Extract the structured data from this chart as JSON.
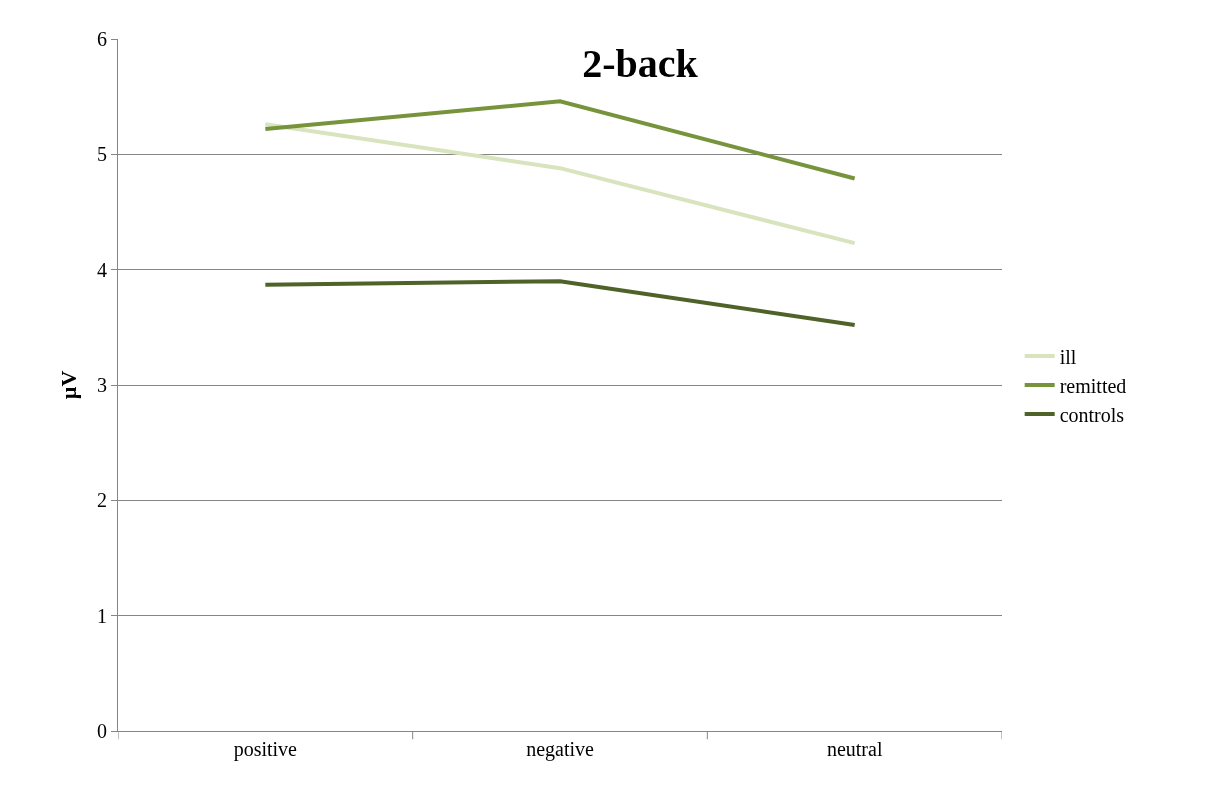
{
  "chart_data": {
    "type": "line",
    "title": "2-back",
    "ylabel": "µV",
    "categories": [
      "positive",
      "negative",
      "neutral"
    ],
    "series": [
      {
        "name": "ill",
        "color": "#d7e4bd",
        "values": [
          5.26,
          4.88,
          4.23
        ]
      },
      {
        "name": "remitted",
        "color": "#77933c",
        "values": [
          5.22,
          5.46,
          4.79
        ]
      },
      {
        "name": "controls",
        "color": "#4f6228",
        "values": [
          3.87,
          3.9,
          3.52
        ]
      }
    ],
    "ylim": [
      0,
      6
    ],
    "yticks": [
      0,
      1,
      2,
      3,
      4,
      5,
      6
    ],
    "grid": "y",
    "legend": "right",
    "marker": "none",
    "line_style": "solid"
  }
}
